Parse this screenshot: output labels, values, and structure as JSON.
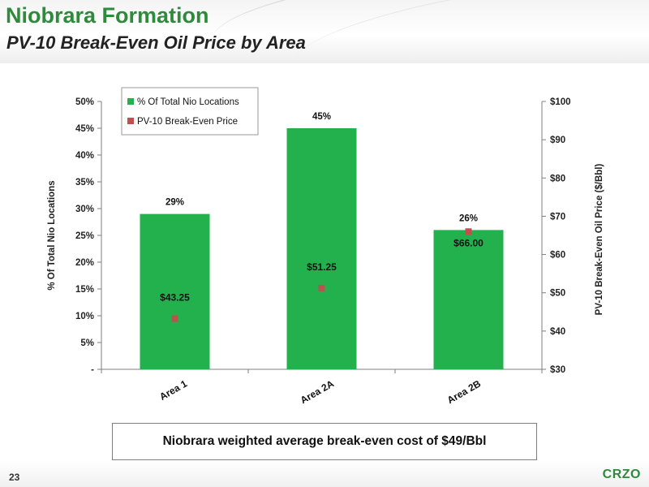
{
  "slide": {
    "title": "Niobrara Formation",
    "subtitle": "PV-10 Break-Even Oil Price by Area",
    "note": "Niobrara weighted average break-even cost of $49/Bbl",
    "page_number": "23",
    "logo_text": "CRZO",
    "title_color": "#2e8b3c"
  },
  "chart_data": {
    "type": "bar",
    "categories": [
      "Area 1",
      "Area 2A",
      "Area 2B"
    ],
    "series": [
      {
        "name": "% Of Total Nio Locations",
        "kind": "bar",
        "axis": "left",
        "color": "#22b14c",
        "values": [
          29,
          45,
          26
        ],
        "labels": [
          "29%",
          "45%",
          "26%"
        ]
      },
      {
        "name": "PV-10 Break-Even Price",
        "kind": "scatter",
        "axis": "right",
        "color": "#c0504d",
        "values": [
          43.25,
          51.25,
          66.0
        ],
        "labels": [
          "$43.25",
          "$51.25",
          "$66.00"
        ]
      }
    ],
    "y_left": {
      "label": "% Of Total Nio Locations",
      "ylim": [
        0,
        50
      ],
      "ticks": [
        0,
        5,
        10,
        15,
        20,
        25,
        30,
        35,
        40,
        45,
        50
      ],
      "tick_labels": [
        "-",
        "5%",
        "10%",
        "15%",
        "20%",
        "25%",
        "30%",
        "35%",
        "40%",
        "45%",
        "50%"
      ]
    },
    "y_right": {
      "label": "PV-10 Break-Even Oil Price ($/Bbl)",
      "ylim": [
        30,
        100
      ],
      "ticks": [
        30,
        40,
        50,
        60,
        70,
        80,
        90,
        100
      ],
      "tick_labels": [
        "$30",
        "$40",
        "$50",
        "$60",
        "$70",
        "$80",
        "$90",
        "$100"
      ]
    },
    "grid": false,
    "legend": "top-left"
  }
}
